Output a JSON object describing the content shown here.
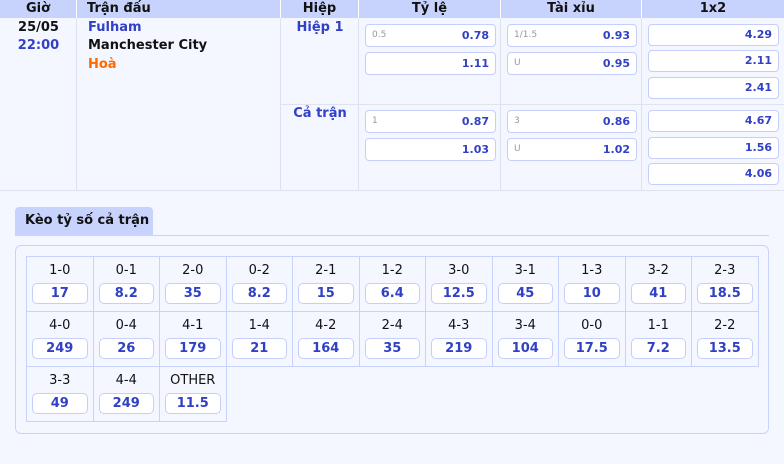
{
  "headers": {
    "time": "Giờ",
    "match": "Trận đấu",
    "half": "Hiệp",
    "handicap": "Tỷ lệ",
    "overunder": "Tài xỉu",
    "x12": "1x2"
  },
  "match": {
    "date": "25/05",
    "time": "22:00",
    "home": "Fulham",
    "away": "Manchester City",
    "draw": "Hoà"
  },
  "periods": [
    {
      "label": "Hiệp 1",
      "handicap": {
        "line": "0.5",
        "home": "0.78",
        "away": "1.11"
      },
      "overunder": {
        "line": "1/1.5",
        "over": "0.93",
        "under_label": "U",
        "under": "0.95"
      },
      "x12": [
        "4.29",
        "2.11",
        "2.41"
      ]
    },
    {
      "label": "Cả trận",
      "handicap": {
        "line": "1",
        "home": "0.87",
        "away": "1.03"
      },
      "overunder": {
        "line": "3",
        "over": "0.86",
        "under_label": "U",
        "under": "1.02"
      },
      "x12": [
        "4.67",
        "1.56",
        "4.06"
      ]
    }
  ],
  "correct_score": {
    "tab": "Kèo tỷ số cả trận",
    "items": [
      {
        "score": "1-0",
        "odds": "17"
      },
      {
        "score": "0-1",
        "odds": "8.2"
      },
      {
        "score": "2-0",
        "odds": "35"
      },
      {
        "score": "0-2",
        "odds": "8.2"
      },
      {
        "score": "2-1",
        "odds": "15"
      },
      {
        "score": "1-2",
        "odds": "6.4"
      },
      {
        "score": "3-0",
        "odds": "12.5"
      },
      {
        "score": "3-1",
        "odds": "45"
      },
      {
        "score": "1-3",
        "odds": "10"
      },
      {
        "score": "3-2",
        "odds": "41"
      },
      {
        "score": "2-3",
        "odds": "18.5"
      },
      {
        "score": "4-0",
        "odds": "249"
      },
      {
        "score": "0-4",
        "odds": "26"
      },
      {
        "score": "4-1",
        "odds": "179"
      },
      {
        "score": "1-4",
        "odds": "21"
      },
      {
        "score": "4-2",
        "odds": "164"
      },
      {
        "score": "2-4",
        "odds": "35"
      },
      {
        "score": "4-3",
        "odds": "219"
      },
      {
        "score": "3-4",
        "odds": "104"
      },
      {
        "score": "0-0",
        "odds": "17.5"
      },
      {
        "score": "1-1",
        "odds": "7.2"
      },
      {
        "score": "2-2",
        "odds": "13.5"
      },
      {
        "score": "3-3",
        "odds": "49"
      },
      {
        "score": "4-4",
        "odds": "249"
      },
      {
        "score": "OTHER",
        "odds": "11.5"
      }
    ]
  },
  "colors": {
    "accent": "#3140c5",
    "header_bg": "#c8d3fd",
    "draw": "#ff6a00"
  }
}
